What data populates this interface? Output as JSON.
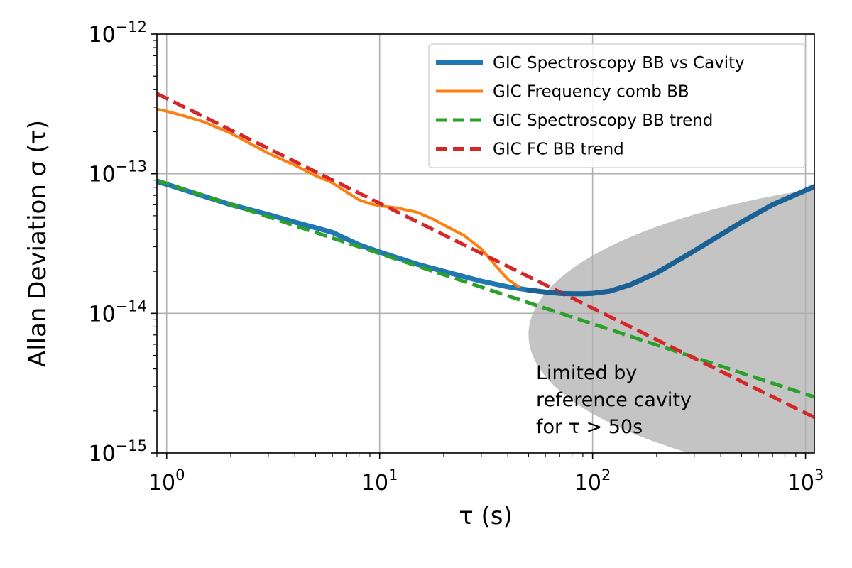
{
  "chart_data": {
    "type": "line",
    "xlabel": "τ (s)",
    "ylabel": "Allan Deviation σ (τ)",
    "xscale": "log",
    "yscale": "log",
    "xlim": [
      0.9,
      1100
    ],
    "ylim": [
      1e-15,
      1e-12
    ],
    "grid": true,
    "legend_position": "top-right",
    "x_ticks": [
      {
        "value": 1,
        "base": "10",
        "exp": "0"
      },
      {
        "value": 10,
        "base": "10",
        "exp": "1"
      },
      {
        "value": 100,
        "base": "10",
        "exp": "2"
      },
      {
        "value": 1000,
        "base": "10",
        "exp": "3"
      }
    ],
    "y_ticks": [
      {
        "value": 1e-15,
        "base": "10",
        "exp": "−15"
      },
      {
        "value": 1e-14,
        "base": "10",
        "exp": "−14"
      },
      {
        "value": 1e-13,
        "base": "10",
        "exp": "−13"
      },
      {
        "value": 1e-12,
        "base": "10",
        "exp": "−12"
      }
    ],
    "shaded_region": {
      "x_start": 50,
      "color": "#c4c4c4",
      "label": "Limited by reference cavity for τ > 50s",
      "label_lines": [
        "Limited by",
        "reference cavity",
        "for τ > 50s"
      ]
    },
    "series": [
      {
        "name": "GIC Spectroscopy BB vs Cavity",
        "color": "#1f77b4",
        "style": "solid",
        "width": 7,
        "x": [
          0.9,
          1,
          1.5,
          2,
          3,
          4,
          5,
          6,
          8,
          10,
          15,
          20,
          30,
          40,
          50,
          60,
          70,
          80,
          90,
          100,
          120,
          150,
          200,
          300,
          500,
          700,
          1100
        ],
        "y": [
          8.8e-14,
          8.4e-14,
          6.9e-14,
          6e-14,
          5.1e-14,
          4.5e-14,
          4.1e-14,
          3.8e-14,
          3.1e-14,
          2.75e-14,
          2.25e-14,
          2e-14,
          1.7e-14,
          1.55e-14,
          1.47e-14,
          1.42e-14,
          1.39e-14,
          1.38e-14,
          1.38e-14,
          1.39e-14,
          1.44e-14,
          1.6e-14,
          1.95e-14,
          2.8e-14,
          4.5e-14,
          6e-14,
          8.1e-14
        ]
      },
      {
        "name": "GIC Frequency comb BB",
        "color": "#ff7f0e",
        "style": "solid",
        "width": 4,
        "x": [
          0.9,
          1,
          1.2,
          1.5,
          2,
          3,
          4,
          5,
          6,
          7,
          8,
          9,
          10,
          12,
          15,
          18,
          20,
          25,
          30,
          35,
          40,
          45
        ],
        "y": [
          2.9e-13,
          2.8e-13,
          2.6e-13,
          2.35e-13,
          1.95e-13,
          1.4e-13,
          1.15e-13,
          9.7e-14,
          8.6e-14,
          7.4e-14,
          6.5e-14,
          6.1e-14,
          5.9e-14,
          5.7e-14,
          5.3e-14,
          4.7e-14,
          4.3e-14,
          3.6e-14,
          2.9e-14,
          2.2e-14,
          1.75e-14,
          1.55e-14
        ]
      },
      {
        "name": "GIC Spectroscopy BB trend",
        "color": "#2ca02c",
        "style": "dashed",
        "width": 5,
        "x": [
          0.9,
          1100
        ],
        "y": [
          9e-14,
          2.52e-15
        ]
      },
      {
        "name": "GIC FC BB trend",
        "color": "#d62728",
        "style": "dashed",
        "width": 5,
        "x": [
          0.9,
          1100
        ],
        "y": [
          3.75e-13,
          1.8e-15
        ]
      }
    ]
  }
}
